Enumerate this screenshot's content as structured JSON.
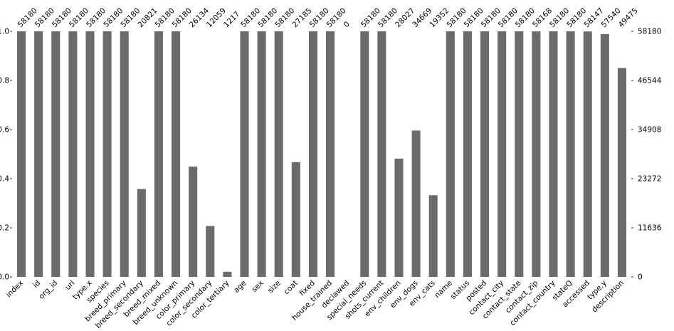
{
  "chart_data": {
    "type": "bar",
    "title": "",
    "xlabel": "",
    "ylabel": "",
    "ylim": [
      0,
      1.0
    ],
    "total": 58180,
    "bar_color": "#6b6b6b",
    "grid": false,
    "categories": [
      "index",
      "id",
      "org_id",
      "url",
      "type.x",
      "species",
      "breed_primary",
      "breed_secondary",
      "breed_mixed",
      "breed_unknown",
      "color_primary",
      "color_secondary",
      "color_tertiary",
      "age",
      "sex",
      "size",
      "coat",
      "fixed",
      "house_trained",
      "declawed",
      "special_needs",
      "shots_current",
      "env_children",
      "env_dogs",
      "env_cats",
      "name",
      "status",
      "posted",
      "contact_city",
      "contact_state",
      "contact_zip",
      "contact_country",
      "stateQ",
      "accessed",
      "type.y",
      "description"
    ],
    "counts": [
      58180,
      58180,
      58180,
      58180,
      58180,
      58180,
      58180,
      20821,
      58180,
      58180,
      26134,
      12059,
      1217,
      58180,
      58180,
      58180,
      27185,
      58180,
      58180,
      0,
      58180,
      58180,
      28027,
      34669,
      19352,
      58180,
      58180,
      58180,
      58180,
      58180,
      58168,
      58180,
      58180,
      58147,
      57540,
      49475
    ],
    "left_axis_ticks": [
      "0.0",
      "0.2",
      "0.4",
      "0.6",
      "0.8",
      "1.0"
    ],
    "right_axis_ticks": [
      "0",
      "11636",
      "23272",
      "34908",
      "46544",
      "58180"
    ]
  }
}
